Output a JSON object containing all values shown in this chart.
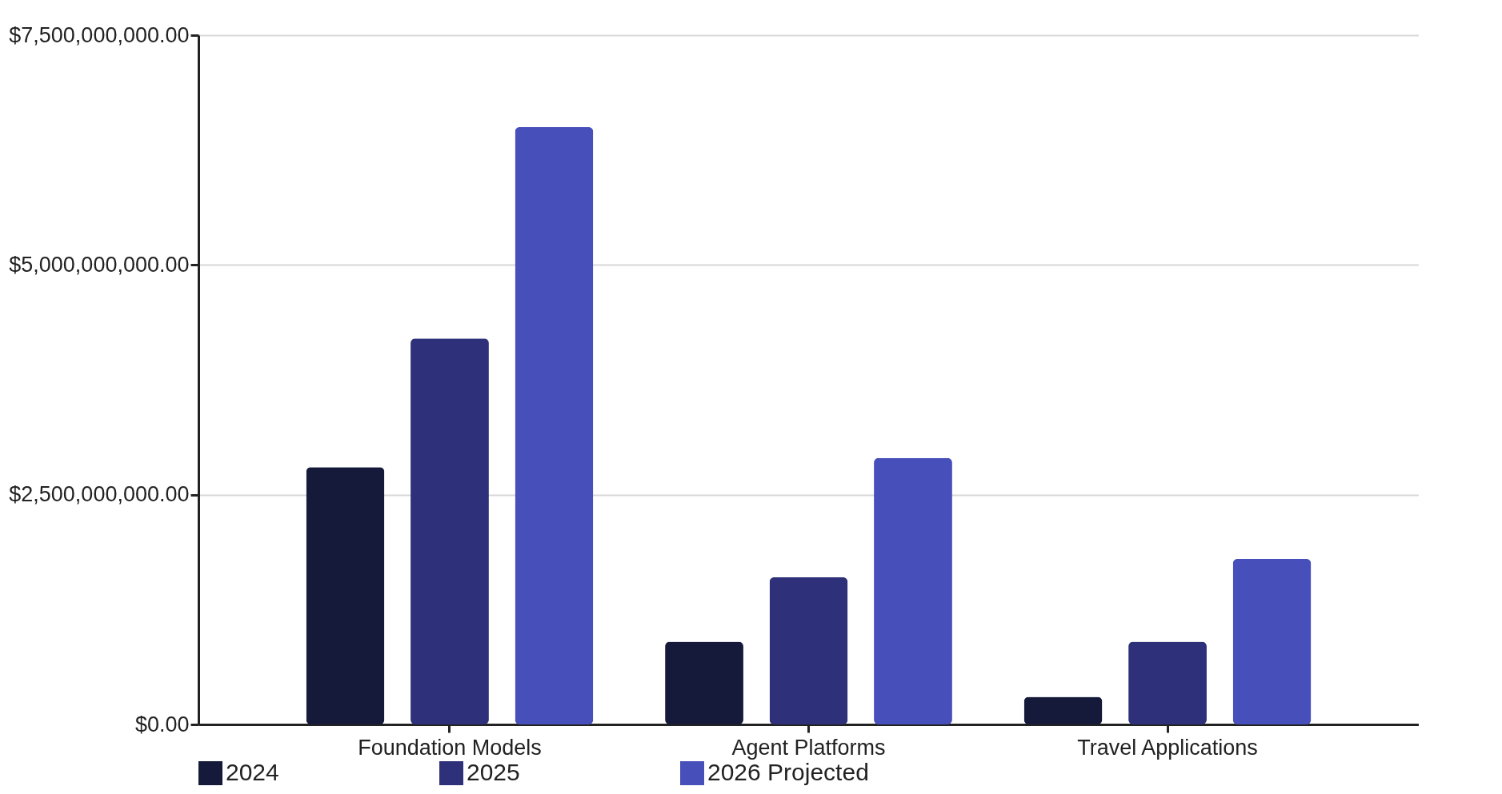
{
  "chart_data": {
    "type": "bar",
    "categories": [
      "Foundation Models",
      "Agent Platforms",
      "Travel Applications"
    ],
    "series": [
      {
        "name": "2024",
        "color": "#161a3a",
        "values": [
          2800000000,
          900000000,
          300000000
        ]
      },
      {
        "name": "2025",
        "color": "#2e3179",
        "values": [
          4200000000,
          1600000000,
          900000000
        ]
      },
      {
        "name": "2026 Projected",
        "color": "#474fbb",
        "values": [
          6500000000,
          2900000000,
          1800000000
        ]
      }
    ],
    "ylim": [
      0,
      7500000000
    ],
    "yticks": [
      {
        "value": 0,
        "label": "$0.00"
      },
      {
        "value": 2500000000,
        "label": "$2,500,000,000.00"
      },
      {
        "value": 5000000000,
        "label": "$5,000,000,000.00"
      },
      {
        "value": 7500000000,
        "label": "$7,500,000,000.00"
      }
    ],
    "grid": "y",
    "legend": "bottom"
  }
}
